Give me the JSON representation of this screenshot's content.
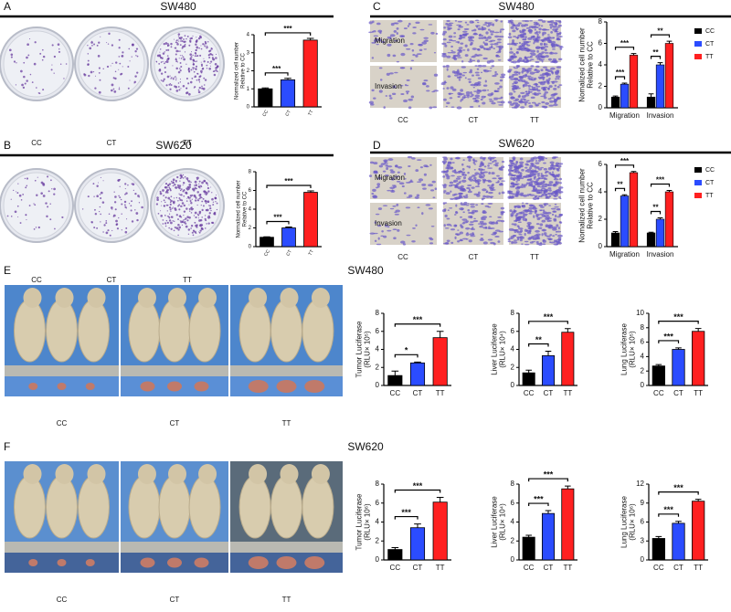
{
  "panels": [
    {
      "letter": "A",
      "title": "SW480",
      "photo_labels": [
        "CC",
        "CT",
        "TT"
      ]
    },
    {
      "letter": "B",
      "title": "SW620",
      "photo_labels": [
        "CC",
        "CT",
        "TT"
      ]
    },
    {
      "letter": "C",
      "title": "SW480",
      "photo_labels": [
        "CC",
        "CT",
        "TT"
      ],
      "row_labels": [
        "Migration",
        "Invasion"
      ]
    },
    {
      "letter": "D",
      "title": "SW620",
      "photo_labels": [
        "CC",
        "CT",
        "TT"
      ],
      "row_labels": [
        "Migration",
        "Invasion"
      ]
    },
    {
      "letter": "E",
      "title": "SW480",
      "photo_labels": [
        "CC",
        "CT",
        "TT"
      ]
    },
    {
      "letter": "F",
      "title": "SW620",
      "photo_labels": [
        "CC",
        "CT",
        "TT"
      ]
    }
  ],
  "chart_data": [
    {
      "type": "bar",
      "ylabel": [
        "Normalized cell number",
        "Relative to CC"
      ],
      "categories": [
        "CC",
        "CT",
        "TT"
      ],
      "values": [
        1.0,
        1.5,
        3.7
      ],
      "errors": [
        0.05,
        0.08,
        0.1
      ],
      "colors": [
        "#000000",
        "#2b4cff",
        "#ff2020"
      ],
      "ylim": [
        0,
        4
      ],
      "yticks": [
        0,
        1,
        2,
        3,
        4
      ],
      "significance": [
        {
          "between": [
            "CC",
            "CT"
          ],
          "label": "***"
        },
        {
          "between": [
            "CC",
            "TT"
          ],
          "label": "***"
        }
      ]
    },
    {
      "type": "bar",
      "ylabel": [
        "Normalized cell number",
        "Relative to CC"
      ],
      "categories": [
        "CC",
        "CT",
        "TT"
      ],
      "values": [
        1.0,
        2.0,
        5.8
      ],
      "errors": [
        0.05,
        0.1,
        0.15
      ],
      "colors": [
        "#000000",
        "#2b4cff",
        "#ff2020"
      ],
      "ylim": [
        0,
        8
      ],
      "yticks": [
        0,
        2,
        4,
        6,
        8
      ],
      "significance": [
        {
          "between": [
            "CC",
            "CT"
          ],
          "label": "***"
        },
        {
          "between": [
            "CC",
            "TT"
          ],
          "label": "***"
        }
      ]
    },
    {
      "type": "grouped-bar",
      "ylabel": [
        "Nomalized cell number",
        "Relative to CC"
      ],
      "categories": [
        "Migration",
        "Invasion"
      ],
      "ylim": [
        0,
        8
      ],
      "yticks": [
        0,
        2,
        4,
        6,
        8
      ],
      "series": [
        {
          "name": "CC",
          "color": "#000000",
          "values": [
            1.0,
            1.0
          ],
          "errors": [
            0.1,
            0.3
          ]
        },
        {
          "name": "CT",
          "color": "#2b4cff",
          "values": [
            2.2,
            4.0
          ],
          "errors": [
            0.1,
            0.2
          ]
        },
        {
          "name": "TT",
          "color": "#ff2020",
          "values": [
            4.9,
            6.0
          ],
          "errors": [
            0.15,
            0.2
          ]
        }
      ],
      "significance": [
        {
          "group": "Migration",
          "between": [
            "CC",
            "CT"
          ],
          "label": "***"
        },
        {
          "group": "Migration",
          "between": [
            "CC",
            "TT"
          ],
          "label": "***"
        },
        {
          "group": "Invasion",
          "between": [
            "CC",
            "CT"
          ],
          "label": "**"
        },
        {
          "group": "Invasion",
          "between": [
            "CC",
            "TT"
          ],
          "label": "**"
        }
      ]
    },
    {
      "type": "grouped-bar",
      "ylabel": [
        "Nomalized cell number",
        "Relative to CC"
      ],
      "categories": [
        "Migration",
        "Invasion"
      ],
      "ylim": [
        0,
        6
      ],
      "yticks": [
        0,
        2,
        4,
        6
      ],
      "series": [
        {
          "name": "CC",
          "color": "#000000",
          "values": [
            1.0,
            1.0
          ],
          "errors": [
            0.1,
            0.05
          ]
        },
        {
          "name": "CT",
          "color": "#2b4cff",
          "values": [
            3.7,
            2.0
          ],
          "errors": [
            0.08,
            0.1
          ]
        },
        {
          "name": "TT",
          "color": "#ff2020",
          "values": [
            5.4,
            4.0
          ],
          "errors": [
            0.08,
            0.1
          ]
        }
      ],
      "significance": [
        {
          "group": "Migration",
          "between": [
            "CC",
            "CT"
          ],
          "label": "**"
        },
        {
          "group": "Migration",
          "between": [
            "CC",
            "TT"
          ],
          "label": "***"
        },
        {
          "group": "Invasion",
          "between": [
            "CC",
            "CT"
          ],
          "label": "**"
        },
        {
          "group": "Invasion",
          "between": [
            "CC",
            "TT"
          ],
          "label": "***"
        }
      ]
    },
    {
      "type": "bar",
      "ylabel": [
        "Tumor Luciferase",
        "(RLU× 10⁵)"
      ],
      "categories": [
        "CC",
        "CT",
        "TT"
      ],
      "values": [
        1.1,
        2.5,
        5.3
      ],
      "errors": [
        0.5,
        0.1,
        0.7
      ],
      "colors": [
        "#000000",
        "#2b4cff",
        "#ff2020"
      ],
      "ylim": [
        0,
        8
      ],
      "yticks": [
        0,
        2,
        4,
        6,
        8
      ],
      "significance": [
        {
          "between": [
            "CC",
            "CT"
          ],
          "label": "*"
        },
        {
          "between": [
            "CC",
            "TT"
          ],
          "label": "***"
        }
      ]
    },
    {
      "type": "bar",
      "ylabel": [
        "Liver Luciferase",
        "(RLU× 10⁴)"
      ],
      "categories": [
        "CC",
        "CT",
        "TT"
      ],
      "values": [
        1.4,
        3.3,
        5.9
      ],
      "errors": [
        0.3,
        0.5,
        0.4
      ],
      "colors": [
        "#000000",
        "#2b4cff",
        "#ff2020"
      ],
      "ylim": [
        0,
        8
      ],
      "yticks": [
        0,
        2,
        4,
        6,
        8
      ],
      "significance": [
        {
          "between": [
            "CC",
            "CT"
          ],
          "label": "**"
        },
        {
          "between": [
            "CC",
            "TT"
          ],
          "label": "***"
        }
      ]
    },
    {
      "type": "bar",
      "ylabel": [
        "Lung Luciferase",
        "(RLU× 10⁵)"
      ],
      "categories": [
        "CC",
        "CT",
        "TT"
      ],
      "values": [
        2.7,
        5.0,
        7.5
      ],
      "errors": [
        0.2,
        0.2,
        0.4
      ],
      "colors": [
        "#000000",
        "#2b4cff",
        "#ff2020"
      ],
      "ylim": [
        0,
        10
      ],
      "yticks": [
        0,
        2,
        4,
        6,
        8,
        10
      ],
      "significance": [
        {
          "between": [
            "CC",
            "CT"
          ],
          "label": "***"
        },
        {
          "between": [
            "CC",
            "TT"
          ],
          "label": "***"
        }
      ]
    },
    {
      "type": "bar",
      "ylabel": [
        "Tumor Luciferase",
        "(RLU× 10⁶)"
      ],
      "categories": [
        "CC",
        "CT",
        "TT"
      ],
      "values": [
        1.1,
        3.4,
        6.1
      ],
      "errors": [
        0.2,
        0.4,
        0.5
      ],
      "colors": [
        "#000000",
        "#2b4cff",
        "#ff2020"
      ],
      "ylim": [
        0,
        8
      ],
      "yticks": [
        0,
        2,
        4,
        6,
        8
      ],
      "significance": [
        {
          "between": [
            "CC",
            "CT"
          ],
          "label": "***"
        },
        {
          "between": [
            "CC",
            "TT"
          ],
          "label": "***"
        }
      ]
    },
    {
      "type": "bar",
      "ylabel": [
        "Liver Luciferase",
        "(RLU× 10⁴)"
      ],
      "categories": [
        "CC",
        "CT",
        "TT"
      ],
      "values": [
        2.4,
        4.9,
        7.5
      ],
      "errors": [
        0.2,
        0.3,
        0.3
      ],
      "colors": [
        "#000000",
        "#2b4cff",
        "#ff2020"
      ],
      "ylim": [
        0,
        8
      ],
      "yticks": [
        0,
        2,
        4,
        6,
        8
      ],
      "significance": [
        {
          "between": [
            "CC",
            "CT"
          ],
          "label": "***"
        },
        {
          "between": [
            "CC",
            "TT"
          ],
          "label": "***"
        }
      ]
    },
    {
      "type": "bar",
      "ylabel": [
        "Lung Luciferase",
        "(RLU× 10⁶)"
      ],
      "categories": [
        "CC",
        "CT",
        "TT"
      ],
      "values": [
        3.4,
        5.8,
        9.3
      ],
      "errors": [
        0.3,
        0.3,
        0.3
      ],
      "colors": [
        "#000000",
        "#2b4cff",
        "#ff2020"
      ],
      "ylim": [
        0,
        12
      ],
      "yticks": [
        0,
        3,
        6,
        9,
        12
      ],
      "significance": [
        {
          "between": [
            "CC",
            "CT"
          ],
          "label": "***"
        },
        {
          "between": [
            "CC",
            "TT"
          ],
          "label": "***"
        }
      ]
    }
  ]
}
